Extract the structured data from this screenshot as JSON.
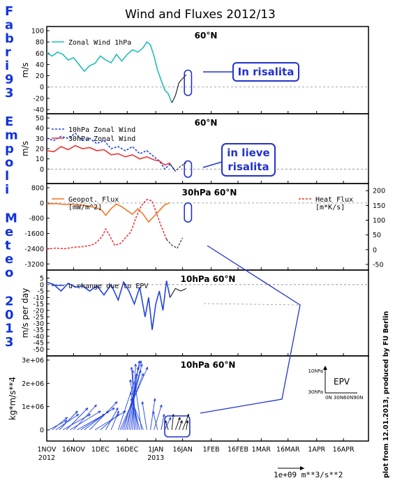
{
  "title": "Wind and Fluxes 2012/13",
  "watermark": [
    "Fabri93",
    "Empoli",
    "Meteo",
    "2013"
  ],
  "credit": "plot from 12.01.2013, produced by FU Berlin",
  "x_axis": {
    "start": "2012-11-01",
    "end": "2013-04-30",
    "ticks": [
      {
        "date": "2012-11-01",
        "label": "1NOV",
        "sub": "2012"
      },
      {
        "date": "2012-11-16",
        "label": "16NOV",
        "sub": ""
      },
      {
        "date": "2012-12-01",
        "label": "1DEC",
        "sub": ""
      },
      {
        "date": "2012-12-16",
        "label": "16DEC",
        "sub": ""
      },
      {
        "date": "2013-01-01",
        "label": "1JAN",
        "sub": "2013"
      },
      {
        "date": "2013-01-16",
        "label": "16JAN",
        "sub": ""
      },
      {
        "date": "2013-02-01",
        "label": "1FEB",
        "sub": ""
      },
      {
        "date": "2013-02-16",
        "label": "16FEB",
        "sub": ""
      },
      {
        "date": "2013-03-01",
        "label": "1MAR",
        "sub": ""
      },
      {
        "date": "2013-03-16",
        "label": "16MAR",
        "sub": ""
      },
      {
        "date": "2013-04-01",
        "label": "1APR",
        "sub": ""
      },
      {
        "date": "2013-04-16",
        "label": "16APR",
        "sub": ""
      }
    ]
  },
  "scale_label": "1e+09  m**3/s**2",
  "colors": {
    "cyan": "#22bbbb",
    "blue": "#2244dd",
    "red": "#ee3333",
    "orange": "#ee7722",
    "box": "#2233cc"
  },
  "chart_data": [
    {
      "type": "line",
      "id": "p1",
      "label": "60°N",
      "ylabel": "m/s",
      "ylim": [
        -40,
        100
      ],
      "yticks": [
        -40,
        -20,
        0,
        20,
        40,
        60,
        80,
        100
      ],
      "zero_line": true,
      "series": [
        {
          "name": "Zonal Wind 1hPa",
          "color": "#22bbbb",
          "dash": false,
          "points": [
            [
              "2012-11-01",
              60
            ],
            [
              "2012-11-04",
              55
            ],
            [
              "2012-11-07",
              62
            ],
            [
              "2012-11-10",
              58
            ],
            [
              "2012-11-13",
              48
            ],
            [
              "2012-11-16",
              52
            ],
            [
              "2012-11-19",
              40
            ],
            [
              "2012-11-22",
              28
            ],
            [
              "2012-11-25",
              38
            ],
            [
              "2012-11-28",
              42
            ],
            [
              "2012-12-01",
              55
            ],
            [
              "2012-12-04",
              48
            ],
            [
              "2012-12-07",
              43
            ],
            [
              "2012-12-10",
              58
            ],
            [
              "2012-12-13",
              46
            ],
            [
              "2012-12-16",
              58
            ],
            [
              "2012-12-19",
              66
            ],
            [
              "2012-12-22",
              62
            ],
            [
              "2012-12-25",
              70
            ],
            [
              "2012-12-27",
              80
            ],
            [
              "2012-12-29",
              75
            ],
            [
              "2012-12-31",
              55
            ],
            [
              "2013-01-02",
              30
            ],
            [
              "2013-01-04",
              12
            ],
            [
              "2013-01-06",
              -5
            ],
            [
              "2013-01-08",
              -12
            ],
            [
              "2013-01-10",
              -28
            ]
          ]
        },
        {
          "name": "",
          "color": "#000000",
          "dash": false,
          "points": [
            [
              "2013-01-10",
              -28
            ],
            [
              "2013-01-12",
              -15
            ],
            [
              "2013-01-14",
              8
            ],
            [
              "2013-01-16",
              15
            ],
            [
              "2013-01-18",
              22
            ]
          ]
        }
      ],
      "annotation": {
        "text": "In risalita",
        "box": [
          "2013-01-17",
          "2013-01-21",
          30,
          -15
        ]
      }
    },
    {
      "type": "line",
      "id": "p2",
      "label": "60°N",
      "ylabel": "m/s",
      "ylim": [
        -10,
        50
      ],
      "yticks": [
        0,
        10,
        20,
        30,
        40,
        50
      ],
      "zero_line": true,
      "series": [
        {
          "name": "10hPa Zonal Wind",
          "color": "#2244dd",
          "dash": true,
          "points": [
            [
              "2012-11-01",
              30
            ],
            [
              "2012-11-05",
              28
            ],
            [
              "2012-11-09",
              32
            ],
            [
              "2012-11-13",
              30
            ],
            [
              "2012-11-17",
              35
            ],
            [
              "2012-11-21",
              28
            ],
            [
              "2012-11-25",
              30
            ],
            [
              "2012-11-29",
              25
            ],
            [
              "2012-12-03",
              28
            ],
            [
              "2012-12-07",
              20
            ],
            [
              "2012-12-11",
              22
            ],
            [
              "2012-12-15",
              18
            ],
            [
              "2012-12-19",
              22
            ],
            [
              "2012-12-23",
              15
            ],
            [
              "2012-12-27",
              18
            ],
            [
              "2012-12-31",
              12
            ],
            [
              "2013-01-03",
              8
            ],
            [
              "2013-01-06",
              0
            ],
            [
              "2013-01-09",
              5
            ],
            [
              "2013-01-12",
              -2
            ]
          ]
        },
        {
          "name": "30hPa Zonal Wind",
          "color": "#ee3333",
          "dash": false,
          "points": [
            [
              "2012-11-01",
              18
            ],
            [
              "2012-11-05",
              17
            ],
            [
              "2012-11-09",
              22
            ],
            [
              "2012-11-13",
              19
            ],
            [
              "2012-11-17",
              23
            ],
            [
              "2012-11-21",
              20
            ],
            [
              "2012-11-25",
              21
            ],
            [
              "2012-11-29",
              18
            ],
            [
              "2012-12-03",
              19
            ],
            [
              "2012-12-07",
              14
            ],
            [
              "2012-12-11",
              15
            ],
            [
              "2012-12-15",
              12
            ],
            [
              "2012-12-19",
              14
            ],
            [
              "2012-12-23",
              10
            ],
            [
              "2012-12-27",
              12
            ],
            [
              "2012-12-31",
              9
            ],
            [
              "2013-01-03",
              8
            ],
            [
              "2013-01-06",
              4
            ],
            [
              "2013-01-09",
              6
            ]
          ]
        },
        {
          "name": "",
          "color": "#000000",
          "dash": true,
          "points": [
            [
              "2013-01-09",
              5
            ],
            [
              "2013-01-12",
              -2
            ],
            [
              "2013-01-15",
              3
            ],
            [
              "2013-01-18",
              6
            ]
          ]
        }
      ],
      "annotation": {
        "text_lines": [
          "in lieve",
          "risalita"
        ],
        "box": [
          "2013-01-17",
          "2013-01-21",
          8,
          -8
        ]
      }
    },
    {
      "type": "line",
      "id": "p3",
      "label": "30hPa 60°N",
      "ylim": [
        -3300,
        800
      ],
      "yticks": [
        -3200,
        -2400,
        -1600,
        -800,
        0,
        800
      ],
      "y2lim": [
        -55,
        210
      ],
      "y2ticks": [
        -50,
        0,
        50,
        100,
        150,
        200
      ],
      "zero_line": true,
      "series": [
        {
          "name": "Geopot. Flux",
          "unit": "[mW/m^2]",
          "color": "#ee7722",
          "dash": false,
          "axis": "left",
          "points": [
            [
              "2012-11-01",
              -50
            ],
            [
              "2012-11-06",
              -30
            ],
            [
              "2012-11-11",
              -80
            ],
            [
              "2012-11-16",
              -60
            ],
            [
              "2012-11-21",
              -120
            ],
            [
              "2012-11-26",
              -200
            ],
            [
              "2012-11-29",
              -250
            ],
            [
              "2012-12-02",
              -400
            ],
            [
              "2012-12-04",
              -650
            ],
            [
              "2012-12-07",
              -300
            ],
            [
              "2012-12-10",
              -60
            ],
            [
              "2012-12-13",
              -200
            ],
            [
              "2012-12-16",
              -400
            ],
            [
              "2012-12-19",
              -600
            ],
            [
              "2012-12-22",
              -300
            ],
            [
              "2012-12-25",
              -600
            ],
            [
              "2012-12-28",
              -1000
            ],
            [
              "2012-12-31",
              -700
            ],
            [
              "2013-01-03",
              -400
            ],
            [
              "2013-01-06",
              -100
            ],
            [
              "2013-01-09",
              20
            ]
          ]
        },
        {
          "name": "Heat Flux",
          "unit": "[m*K/s]",
          "color": "#ee3333",
          "dash": true,
          "axis": "right",
          "points": [
            [
              "2012-11-01",
              2
            ],
            [
              "2012-11-06",
              5
            ],
            [
              "2012-11-11",
              3
            ],
            [
              "2012-11-16",
              8
            ],
            [
              "2012-11-21",
              10
            ],
            [
              "2012-11-26",
              15
            ],
            [
              "2012-11-29",
              25
            ],
            [
              "2012-12-02",
              45
            ],
            [
              "2012-12-04",
              70
            ],
            [
              "2012-12-06",
              50
            ],
            [
              "2012-12-09",
              15
            ],
            [
              "2012-12-12",
              20
            ],
            [
              "2012-12-15",
              40
            ],
            [
              "2012-12-18",
              60
            ],
            [
              "2012-12-21",
              110
            ],
            [
              "2012-12-24",
              150
            ],
            [
              "2012-12-27",
              170
            ],
            [
              "2012-12-30",
              165
            ],
            [
              "2013-01-01",
              130
            ],
            [
              "2013-01-04",
              80
            ],
            [
              "2013-01-07",
              35
            ]
          ]
        },
        {
          "name": "",
          "color": "#000000",
          "dash": true,
          "axis": "right",
          "points": [
            [
              "2013-01-07",
              35
            ],
            [
              "2013-01-10",
              15
            ],
            [
              "2013-01-13",
              5
            ],
            [
              "2013-01-16",
              40
            ]
          ]
        }
      ],
      "annotation": {
        "box": [
          "2013-01-17",
          "2013-01-21",
          -1000,
          0
        ]
      }
    },
    {
      "type": "line",
      "id": "p4",
      "label": "10hPa 60°N",
      "ylabel": "m/s per day",
      "ylim": [
        -52,
        8
      ],
      "yticks": [
        -50,
        -45,
        -40,
        -35,
        -30,
        -25,
        -20,
        -15,
        -10,
        -5,
        0,
        5
      ],
      "zero_line": true,
      "series": [
        {
          "name": "u-change due to EPV",
          "color": "#2244dd",
          "dash": false,
          "points": [
            [
              "2012-11-01",
              2
            ],
            [
              "2012-11-05",
              0
            ],
            [
              "2012-11-09",
              -5
            ],
            [
              "2012-11-13",
              1
            ],
            [
              "2012-11-17",
              -2
            ],
            [
              "2012-11-21",
              -1
            ],
            [
              "2012-11-25",
              -5
            ],
            [
              "2012-11-29",
              -1
            ],
            [
              "2012-12-03",
              -8
            ],
            [
              "2012-12-07",
              0
            ],
            [
              "2012-12-11",
              -12
            ],
            [
              "2012-12-14",
              2
            ],
            [
              "2012-12-17",
              -5
            ],
            [
              "2012-12-20",
              -15
            ],
            [
              "2012-12-23",
              -2
            ],
            [
              "2012-12-26",
              -25
            ],
            [
              "2012-12-28",
              -10
            ],
            [
              "2012-12-30",
              -35
            ],
            [
              "2013-01-01",
              -15
            ],
            [
              "2013-01-03",
              -5
            ],
            [
              "2013-01-05",
              -20
            ],
            [
              "2013-01-07",
              3
            ],
            [
              "2013-01-09",
              -10
            ]
          ]
        },
        {
          "name": "",
          "color": "#000000",
          "dash": false,
          "points": [
            [
              "2013-01-09",
              -10
            ],
            [
              "2013-01-12",
              -3
            ],
            [
              "2013-01-15",
              -5
            ],
            [
              "2013-01-18",
              -3
            ]
          ]
        }
      ]
    },
    {
      "type": "vector",
      "id": "p5",
      "label": "10hPa 60°N",
      "ylabel": "kg*m/s**4",
      "ylim": [
        -300000,
        3000000
      ],
      "yticks": [
        0,
        1000000,
        2000000,
        3000000
      ],
      "ytick_labels": [
        "0",
        "1e+06",
        "2e+06",
        "3e+06"
      ],
      "legend": {
        "title": "EPV",
        "y_labels": [
          "10hPa",
          "30hPa"
        ],
        "x_label": "0N 30N60N90N"
      },
      "vectors": [
        [
          "2012-11-02",
          1.2,
          0.3
        ],
        [
          "2012-11-04",
          1.0,
          0.4
        ],
        [
          "2012-11-06",
          1.5,
          0.5
        ],
        [
          "2012-11-08",
          1.2,
          0.6
        ],
        [
          "2012-11-10",
          1.8,
          0.5
        ],
        [
          "2012-11-12",
          1.4,
          0.7
        ],
        [
          "2012-11-14",
          2.0,
          0.6
        ],
        [
          "2012-11-16",
          1.5,
          0.8
        ],
        [
          "2012-11-18",
          1.8,
          0.5
        ],
        [
          "2012-11-20",
          2.2,
          0.7
        ],
        [
          "2012-11-22",
          1.6,
          0.6
        ],
        [
          "2012-11-25",
          1.8,
          0.9
        ],
        [
          "2012-11-28",
          2.0,
          0.6
        ],
        [
          "2012-12-01",
          1.2,
          0.5
        ],
        [
          "2012-12-04",
          0.8,
          0.7
        ],
        [
          "2012-12-07",
          0.5,
          0.6
        ],
        [
          "2012-12-11",
          1.5,
          2.2
        ],
        [
          "2012-12-12",
          1.8,
          2.0
        ],
        [
          "2012-12-13",
          1.4,
          1.8
        ],
        [
          "2012-12-14",
          1.2,
          2.1
        ],
        [
          "2012-12-15",
          1.0,
          1.9
        ],
        [
          "2012-12-16",
          0.8,
          2.2
        ],
        [
          "2012-12-17",
          0.6,
          2.0
        ],
        [
          "2012-12-18",
          0.4,
          1.8
        ],
        [
          "2012-12-19",
          0.2,
          2.1
        ],
        [
          "2012-12-20",
          -0.1,
          1.9
        ],
        [
          "2012-12-21",
          -0.3,
          2.0
        ],
        [
          "2012-12-22",
          -0.5,
          1.6
        ],
        [
          "2012-12-23",
          -0.6,
          1.2
        ],
        [
          "2012-12-24",
          -0.4,
          1.4
        ],
        [
          "2012-12-25",
          -0.8,
          1.0
        ],
        [
          "2012-12-27",
          -0.3,
          0.9
        ],
        [
          "2012-12-29",
          0.3,
          1.0
        ],
        [
          "2012-12-31",
          0.5,
          0.8
        ],
        [
          "2013-01-02",
          -0.3,
          0.6
        ],
        [
          "2013-01-04",
          0.2,
          0.5
        ],
        [
          "2013-01-06",
          0.4,
          0.4
        ],
        [
          "2013-01-08",
          -0.2,
          0.3
        ],
        [
          "2013-01-10",
          0.1,
          0.5
        ],
        [
          "2013-01-12",
          0.3,
          0.4
        ],
        [
          "2013-01-14",
          0.2,
          0.3
        ],
        [
          "2013-01-16",
          0.4,
          0.5
        ],
        [
          "2013-01-18",
          0.1,
          0.3
        ]
      ],
      "annotation": {
        "box": [
          "2013-01-06",
          "2013-01-20",
          600000,
          -300000
        ]
      }
    }
  ]
}
